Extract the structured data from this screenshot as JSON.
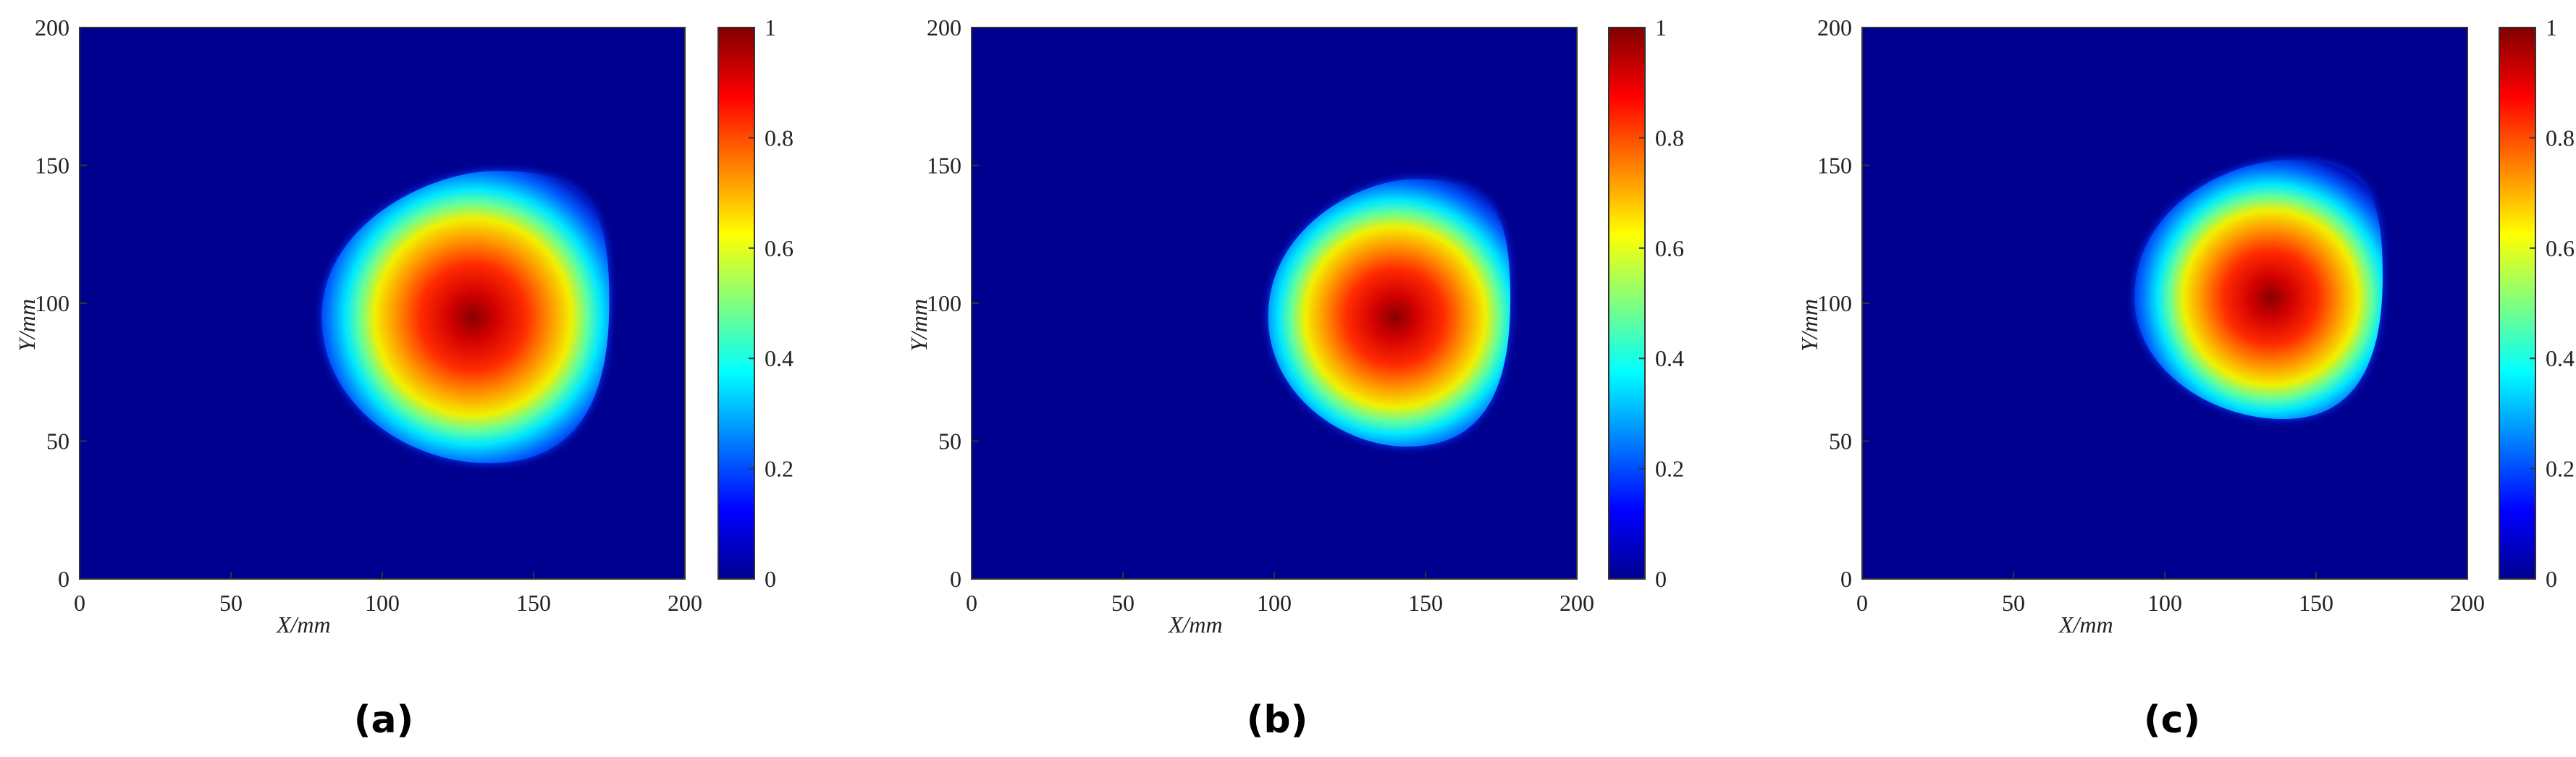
{
  "chart_data": [
    {
      "type": "heatmap",
      "label": "(a)",
      "xlabel": "X/mm",
      "ylabel": "Y/mm",
      "xlim": [
        0,
        200
      ],
      "ylim": [
        0,
        200
      ],
      "xticks": [
        0,
        50,
        100,
        150,
        200
      ],
      "yticks": [
        0,
        50,
        100,
        150,
        200
      ],
      "colorbar": {
        "min": 0,
        "max": 1,
        "ticks": [
          0,
          0.2,
          0.4,
          0.6,
          0.8,
          1
        ],
        "colormap": "jet"
      },
      "peak": {
        "x": 130,
        "y": 95,
        "value": 1
      },
      "field_extent_x": [
        80,
        175
      ],
      "field_extent_y": [
        42,
        148
      ]
    },
    {
      "type": "heatmap",
      "label": "(b)",
      "xlabel": "X/mm",
      "ylabel": "Y/mm",
      "xlim": [
        0,
        200
      ],
      "ylim": [
        0,
        200
      ],
      "xticks": [
        0,
        50,
        100,
        150,
        200
      ],
      "yticks": [
        0,
        50,
        100,
        150,
        200
      ],
      "colorbar": {
        "min": 0,
        "max": 1,
        "ticks": [
          0,
          0.2,
          0.4,
          0.6,
          0.8,
          1
        ],
        "colormap": "jet"
      },
      "peak": {
        "x": 140,
        "y": 95,
        "value": 1
      },
      "field_extent_x": [
        98,
        178
      ],
      "field_extent_y": [
        48,
        145
      ]
    },
    {
      "type": "heatmap",
      "label": "(c)",
      "xlabel": "X/mm",
      "ylabel": "Y/mm",
      "xlim": [
        0,
        200
      ],
      "ylim": [
        0,
        200
      ],
      "xticks": [
        0,
        50,
        100,
        150,
        200
      ],
      "yticks": [
        0,
        50,
        100,
        150,
        200
      ],
      "colorbar": {
        "min": 0,
        "max": 1,
        "ticks": [
          0,
          0.2,
          0.4,
          0.6,
          0.8,
          1
        ],
        "colormap": "jet"
      },
      "peak": {
        "x": 135,
        "y": 102,
        "value": 1
      },
      "field_extent_x": [
        90,
        172
      ],
      "field_extent_y": [
        58,
        152
      ]
    }
  ]
}
